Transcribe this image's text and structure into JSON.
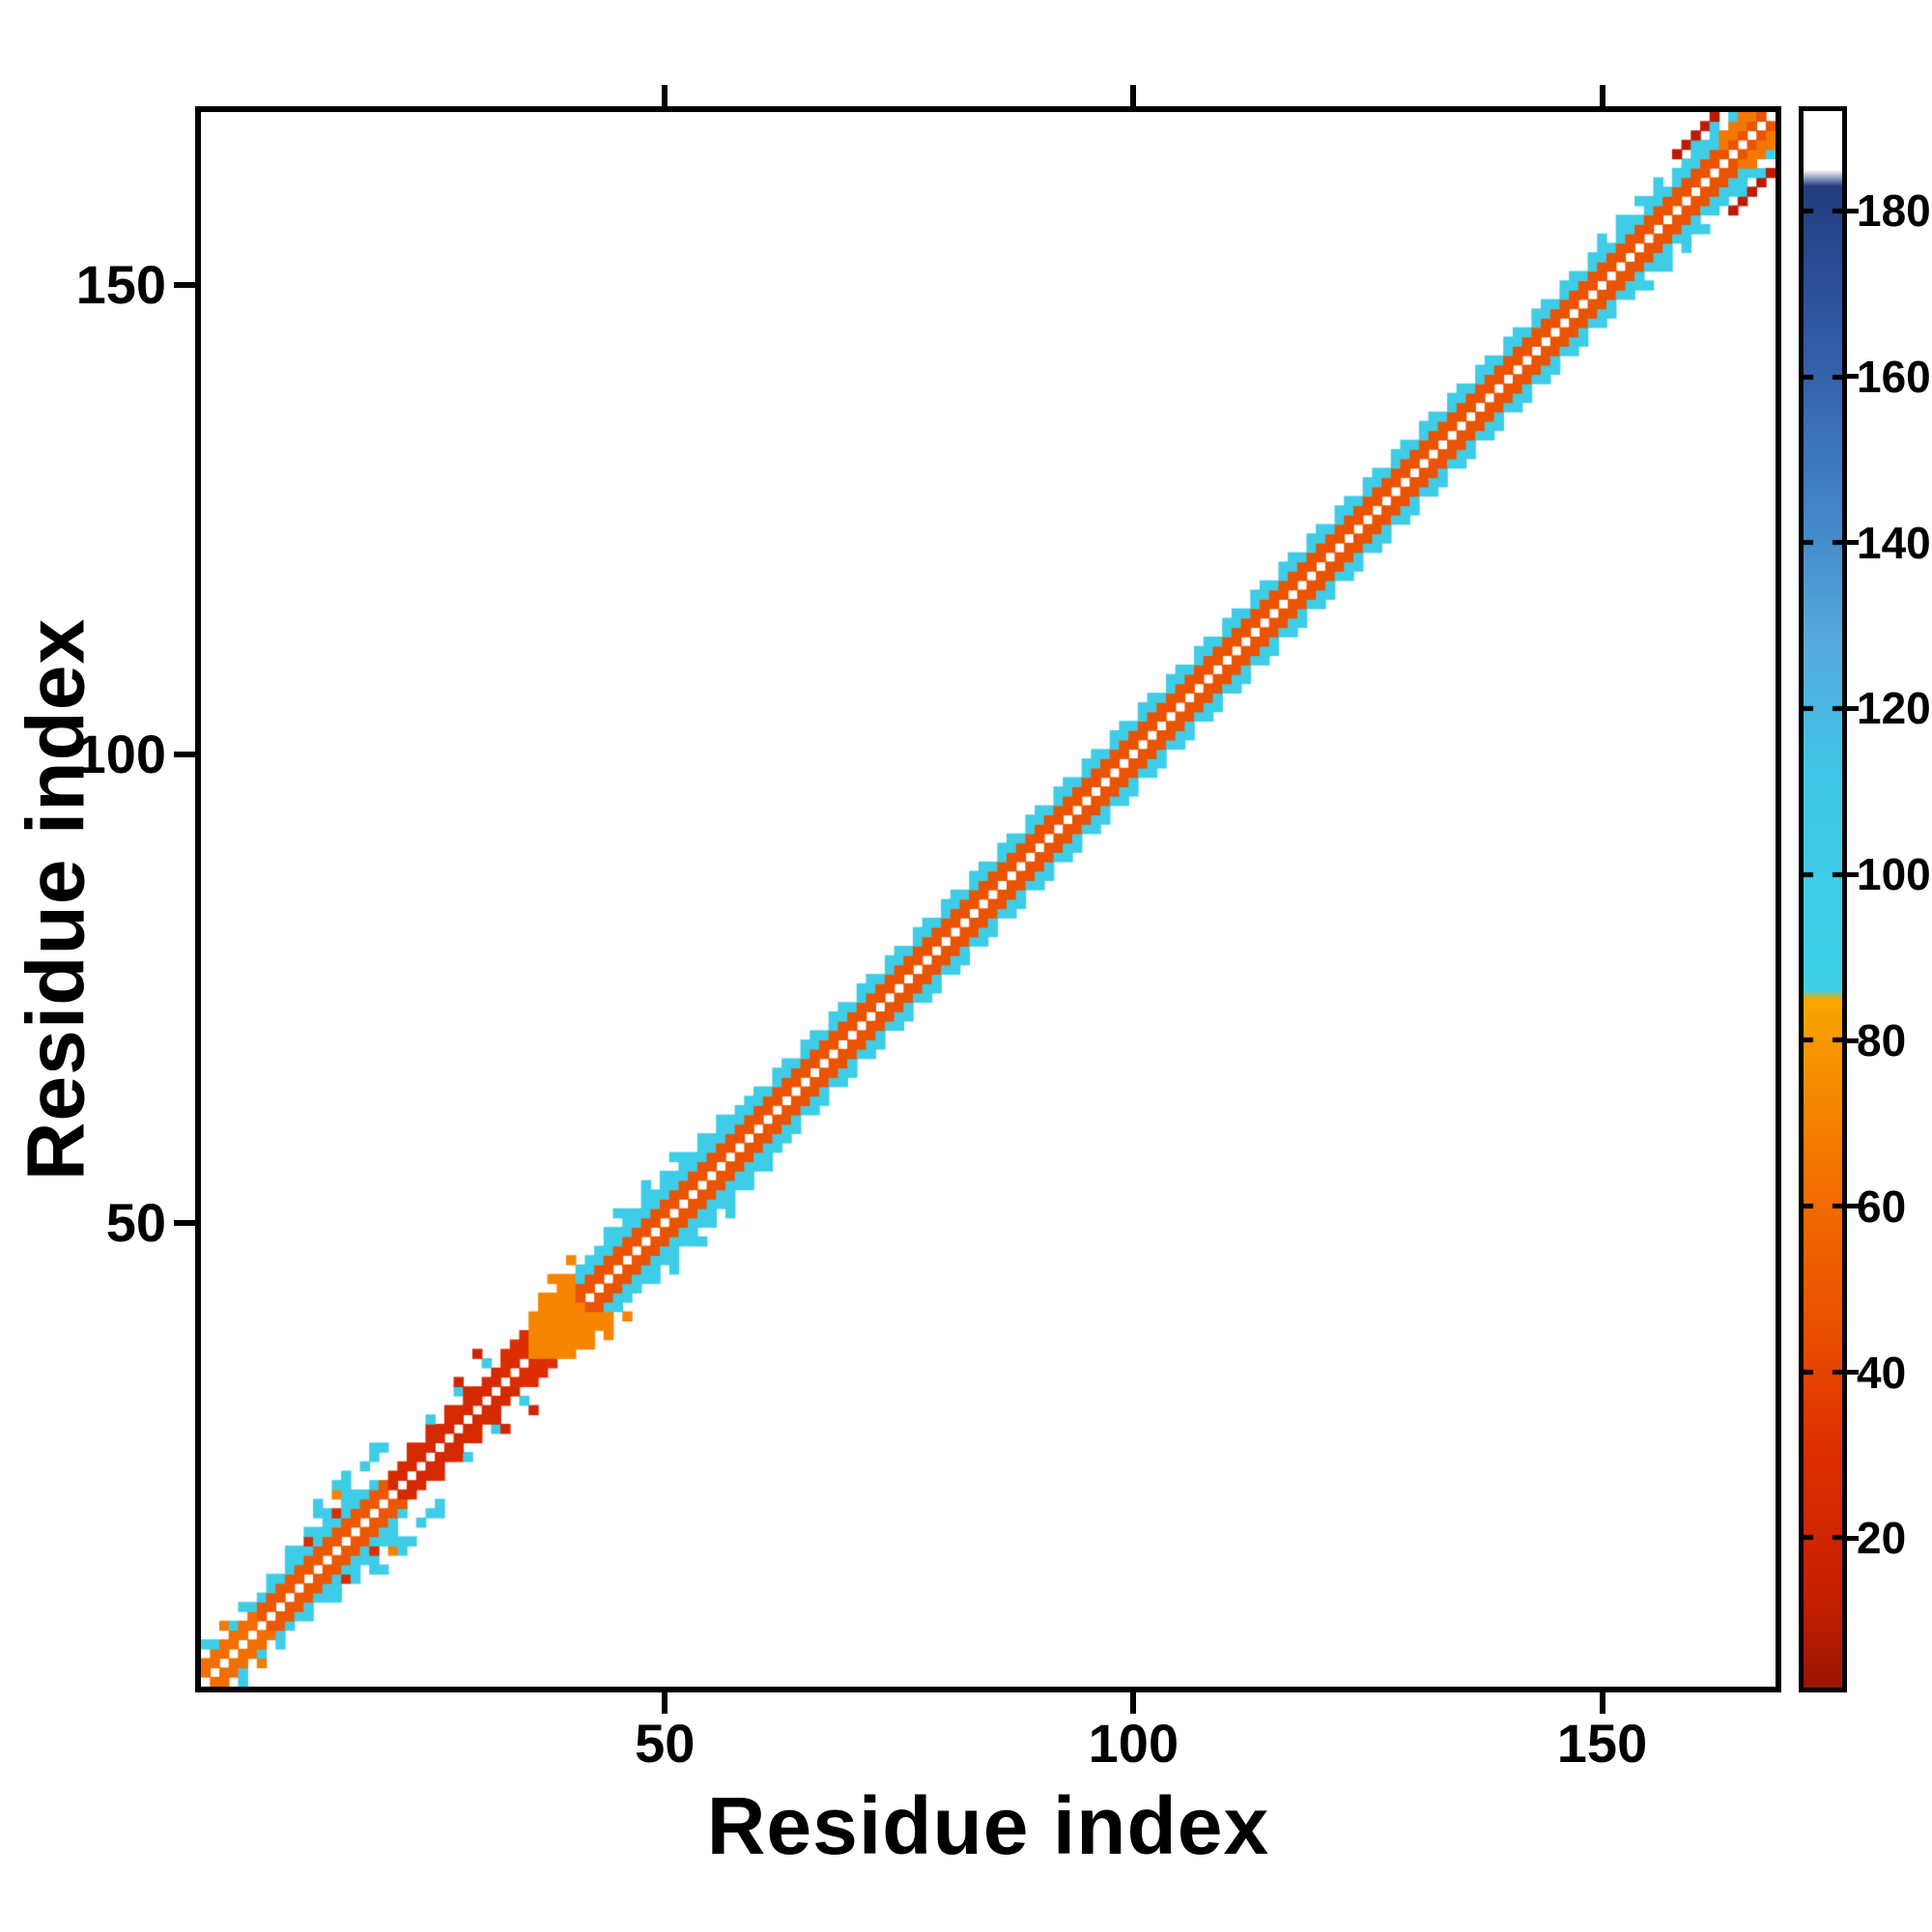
{
  "figure": {
    "background_color": "#ffffff",
    "frame_color": "#000000",
    "text_color": "#000000"
  },
  "chart_data": {
    "type": "heatmap",
    "title": "",
    "xlabel": "Residue index",
    "ylabel": "Residue index",
    "x_ticks": [
      50,
      100,
      150
    ],
    "y_ticks": [
      50,
      100,
      150
    ],
    "axis_range": [
      0.5,
      168.5
    ],
    "n_residues": 168,
    "grid": false,
    "description": "Protein residue-residue contact map: symmetric diagonal band (orange-red core |i-j|<=2, cyan flanks |i-j|=3-5) with irregular red/orange contact clusters for residues 1-42 and an orange blob near residues 36-41.",
    "colorbar": {
      "position": "right",
      "ticks": [
        20,
        40,
        60,
        80,
        100,
        120,
        140,
        160,
        180
      ],
      "vmin": 2,
      "vmax": 192,
      "stops": [
        [
          2,
          "#991400"
        ],
        [
          12,
          "#c41e00"
        ],
        [
          30,
          "#dd2e00"
        ],
        [
          45,
          "#e94f00"
        ],
        [
          62,
          "#f26e00"
        ],
        [
          78,
          "#f79300"
        ],
        [
          85,
          "#f9a800"
        ],
        [
          86,
          "#3dd2e8"
        ],
        [
          112,
          "#3fc6e6"
        ],
        [
          128,
          "#57aadc"
        ],
        [
          142,
          "#4489c9"
        ],
        [
          158,
          "#3767ae"
        ],
        [
          172,
          "#2b4d96"
        ],
        [
          183,
          "#223d7e"
        ],
        [
          185,
          "#ffffff"
        ],
        [
          192,
          "#ffffff"
        ]
      ]
    },
    "matrix_spec": {
      "symmetric": true,
      "diagonal_value": null,
      "segments": [
        {
          "i0": 1,
          "i1": 7,
          "offsets": [
            1,
            2
          ],
          "value": 62
        },
        {
          "i0": 2,
          "i1": 7,
          "offsets": [
            3
          ],
          "value": 100,
          "mod": 2,
          "rem": 0
        },
        {
          "i0": 1,
          "i1": 6,
          "offsets": [
            4
          ],
          "value": 100,
          "mod": 2,
          "rem": 1
        },
        {
          "i0": 7,
          "i1": 21,
          "offsets": [
            1,
            2
          ],
          "value": 50
        },
        {
          "i0": 7,
          "i1": 19,
          "offsets": [
            3
          ],
          "value": 100
        },
        {
          "i0": 8,
          "i1": 18,
          "offsets": [
            4
          ],
          "value": 100,
          "mod": 3,
          "rem_not": 0
        },
        {
          "i0": 10,
          "i1": 17,
          "offsets": [
            4
          ],
          "value": 28,
          "mod": 3,
          "rem": 0
        },
        {
          "i0": 9,
          "i1": 16,
          "offsets": [
            5
          ],
          "value": 100,
          "mod": 2,
          "rem": 0
        },
        {
          "i0": 12,
          "i1": 19,
          "offsets": [
            6,
            7
          ],
          "value": 100,
          "mod": 3,
          "rem": 1
        },
        {
          "i0": 13,
          "i1": 17,
          "offsets": [
            6
          ],
          "value": 70,
          "mod": 3,
          "rem": 0
        },
        {
          "i0": 21,
          "i1": 33,
          "offsets": [
            1,
            2
          ],
          "value": 24
        },
        {
          "i0": 22,
          "i1": 30,
          "offsets": [
            3
          ],
          "value": 24,
          "mod": 2,
          "rem": 1
        },
        {
          "i0": 24,
          "i1": 31,
          "offsets": [
            4
          ],
          "value": 100,
          "mod": 3,
          "rem": 1
        },
        {
          "i0": 33,
          "i1": 36,
          "offsets": [
            1,
            2,
            3
          ],
          "value": 30
        },
        {
          "i0": 36,
          "i1": 41,
          "offsets": [
            0,
            1,
            2,
            3,
            4
          ],
          "value": 72
        },
        {
          "i0": 37,
          "i1": 40,
          "offsets": [
            5
          ],
          "value": 72,
          "mod": 2,
          "rem": 1
        },
        {
          "i0": 38,
          "i1": 41,
          "offsets": [
            6
          ],
          "value": 72,
          "mod": 2,
          "rem": 0
        },
        {
          "i0": 41,
          "i1": 58,
          "offsets": [
            1,
            2
          ],
          "value": 47
        },
        {
          "i0": 41,
          "i1": 58,
          "offsets": [
            3,
            4
          ],
          "value": 100
        },
        {
          "i0": 43,
          "i1": 56,
          "offsets": [
            5
          ],
          "value": 100,
          "mod": 2,
          "rem": 0
        },
        {
          "i0": 45,
          "i1": 52,
          "offsets": [
            6
          ],
          "value": 100,
          "mod": 3,
          "rem": 0
        },
        {
          "i0": 58,
          "i1": 168,
          "offsets": [
            1,
            2
          ],
          "value": 47
        },
        {
          "i0": 58,
          "i1": 168,
          "offsets": [
            3
          ],
          "value": 100
        },
        {
          "i0": 58,
          "i1": 167,
          "offsets": [
            4
          ],
          "value": 100,
          "mod": 3,
          "rem_not": 1
        },
        {
          "i0": 149,
          "i1": 157,
          "offsets": [
            5
          ],
          "value": 100,
          "mod": 2,
          "rem": 0
        },
        {
          "i0": 158,
          "i1": 164,
          "offsets": [
            6
          ],
          "value": 10
        },
        {
          "i0": 160,
          "i1": 166,
          "offsets": [
            4,
            5
          ],
          "value": 100,
          "mod": 2,
          "rem": 0
        },
        {
          "i0": 163,
          "i1": 168,
          "offsets": [
            2,
            3
          ],
          "value": 66
        },
        {
          "i0": 164,
          "i1": 168,
          "offsets": [
            4
          ],
          "value": 30,
          "mod": 2,
          "rem": 1
        }
      ],
      "cells": [
        {
          "i": 28,
          "j": 33,
          "value": 20
        },
        {
          "i": 30,
          "j": 36,
          "value": 20
        },
        {
          "i": 25,
          "j": 29,
          "value": 100
        },
        {
          "i": 3,
          "j": 7,
          "value": 68
        },
        {
          "i": 15,
          "j": 22,
          "value": 100
        },
        {
          "i": 18,
          "j": 24,
          "value": 100
        },
        {
          "i": 20,
          "j": 26,
          "value": 100
        }
      ]
    }
  }
}
